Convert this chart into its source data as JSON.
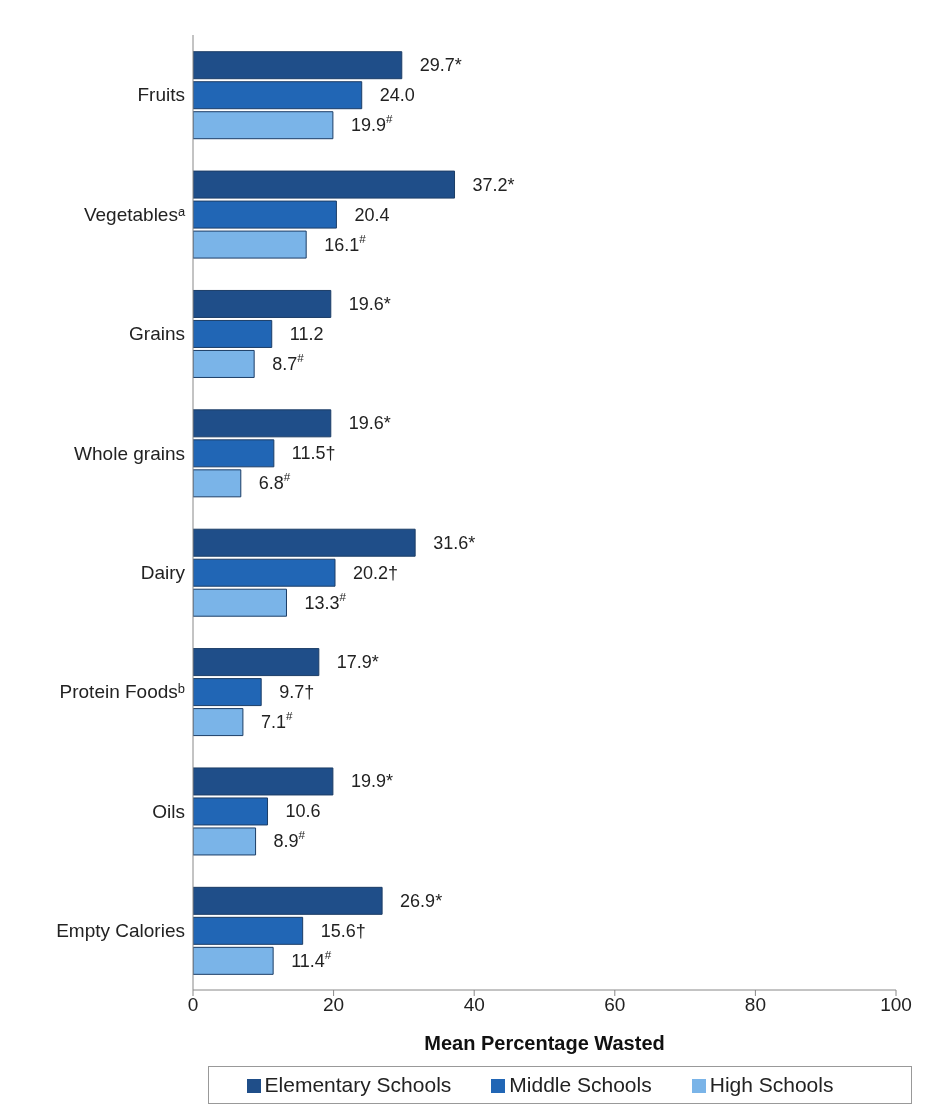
{
  "chart_data": {
    "type": "bar",
    "orientation": "horizontal",
    "xlabel": "Mean Percentage Wasted",
    "categories": [
      "Fruits",
      "Vegetablesᵃ",
      "Grains",
      "Whole grains",
      "Dairy",
      "Protein Foodsᵇ",
      "Oils",
      "Empty Calories"
    ],
    "series": [
      {
        "name": "Elementary Schools",
        "color": "#1f4e89",
        "values": [
          29.7,
          37.2,
          19.6,
          19.6,
          31.6,
          17.9,
          19.9,
          26.9
        ],
        "value_labels": [
          "29.7*",
          "37.2*",
          "19.6*",
          "19.6*",
          "31.6*",
          "17.9*",
          "19.9*",
          "26.9*"
        ]
      },
      {
        "name": "Middle Schools",
        "color": "#2166b5",
        "values": [
          24.0,
          20.4,
          11.2,
          11.5,
          20.2,
          9.7,
          10.6,
          15.6
        ],
        "value_labels": [
          "24.0",
          "20.4",
          "11.2",
          "11.5†",
          "20.2†",
          "9.7†",
          "10.6",
          "15.6†"
        ]
      },
      {
        "name": "High Schools",
        "color": "#7ab4e8",
        "values": [
          19.9,
          16.1,
          8.7,
          6.8,
          13.3,
          7.1,
          8.9,
          11.4
        ],
        "value_labels": [
          "19.9$^{#}$",
          "16.1$^{#}$",
          "8.7$^{#}$",
          "6.8$^{#}$",
          "13.3$^{#}$",
          "7.1$^{#}$",
          "8.9$^{#}$",
          "11.4$^{#}$"
        ]
      }
    ],
    "xlim": [
      0,
      100
    ],
    "xticks": [
      0,
      20,
      40,
      60,
      80,
      100
    ],
    "grid": false,
    "legend": "bottom"
  }
}
